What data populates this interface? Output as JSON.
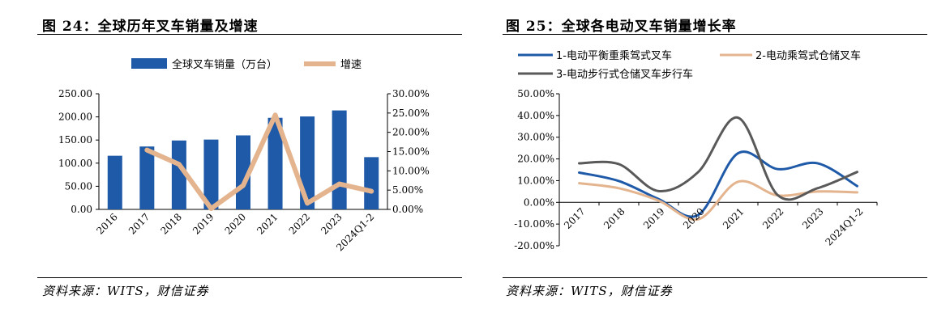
{
  "chart_data": [
    {
      "id": "fig24",
      "type": "bar",
      "title": "图 24：全球历年叉车销量及增速",
      "source": "资料来源：WITS，财信证券",
      "categories": [
        "2016",
        "2017",
        "2018",
        "2019",
        "2020",
        "2021",
        "2022",
        "2023",
        "2024Q1-2"
      ],
      "series": [
        {
          "name": "全球叉车销量（万台）",
          "type": "bar",
          "axis": "left",
          "color": "#1f5aa8",
          "values": [
            116,
            136,
            149,
            151,
            160,
            198,
            201,
            214,
            113
          ]
        },
        {
          "name": "增速",
          "type": "line",
          "axis": "right",
          "color": "#e3b48e",
          "values": [
            null,
            15.4,
            11.7,
            0.2,
            6.2,
            24.5,
            1.6,
            6.6,
            4.7
          ]
        }
      ],
      "ylim_left": [
        0,
        250
      ],
      "yticks_left": [
        "0.00",
        "50.00",
        "100.00",
        "150.00",
        "200.00",
        "250.00"
      ],
      "ylim_right": [
        0,
        30
      ],
      "yticks_right": [
        "0.00%",
        "5.00%",
        "10.00%",
        "15.00%",
        "20.00%",
        "25.00%",
        "30.00%"
      ],
      "legend": "top",
      "grid": false
    },
    {
      "id": "fig25",
      "type": "line",
      "title": "图 25：全球各电动叉车销量增长率",
      "source": "资料来源：WITS，财信证券",
      "categories": [
        "2017",
        "2018",
        "2019",
        "2020",
        "2021",
        "2022",
        "2023",
        "2024Q1-2"
      ],
      "series": [
        {
          "name": "1-电动平衡重乘驾式叉车",
          "color": "#1f5aa8",
          "values": [
            13.7,
            9.8,
            1.5,
            -5.8,
            22.6,
            15.3,
            18.0,
            7.5
          ]
        },
        {
          "name": "2-电动乘驾式仓储叉车",
          "color": "#e3b48e",
          "values": [
            8.8,
            6.5,
            0.8,
            -7.8,
            9.5,
            3.2,
            5.0,
            4.6
          ]
        },
        {
          "name": "3-电动步行式仓储叉车步行车",
          "color": "#595959",
          "values": [
            18.0,
            17.6,
            5.2,
            14.0,
            39.0,
            3.3,
            6.5,
            14.0
          ]
        }
      ],
      "ylim": [
        -20,
        50
      ],
      "yticks": [
        "-20.00%",
        "-10.00%",
        "0.00%",
        "10.00%",
        "20.00%",
        "30.00%",
        "40.00%",
        "50.00%"
      ],
      "legend": "top",
      "grid": false
    }
  ]
}
